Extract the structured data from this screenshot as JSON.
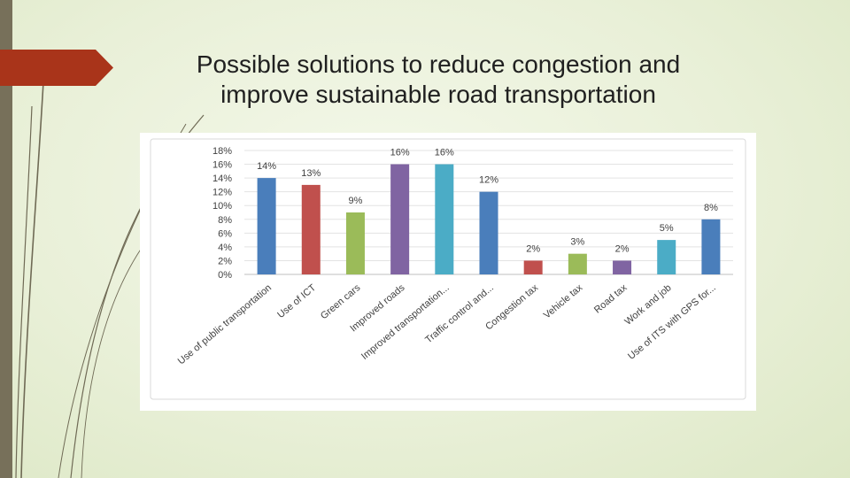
{
  "slide": {
    "title_line1": "Possible solutions to reduce congestion and",
    "title_line2": "improve sustainable road transportation"
  },
  "theme": {
    "left_bar": "#77705a",
    "accent": "#a9341a",
    "line_color": "#6f6a55"
  },
  "chart_data": {
    "type": "bar",
    "title": "",
    "xlabel": "",
    "ylabel": "",
    "ylim": [
      0,
      18
    ],
    "yticks": [
      "0%",
      "2%",
      "4%",
      "6%",
      "8%",
      "10%",
      "12%",
      "14%",
      "16%",
      "18%"
    ],
    "grid": true,
    "categories": [
      "Use of public transportation",
      "Use of ICT",
      "Green cars",
      "Improved roads",
      "Improved transportation...",
      "Traffic control and...",
      "Congestion tax",
      "Vehicle tax",
      "Road tax",
      "Work and job",
      "Use of ITS with GPS for..."
    ],
    "values": [
      14,
      13,
      9,
      16,
      16,
      12,
      2,
      3,
      2,
      5,
      8
    ],
    "data_labels": [
      "14%",
      "13%",
      "9%",
      "16%",
      "16%",
      "12%",
      "2%",
      "3%",
      "2%",
      "5%",
      "8%"
    ],
    "colors": [
      "#4a7ebb",
      "#c0504d",
      "#9bbb59",
      "#8064a2",
      "#4bacc6",
      "#4a7ebb",
      "#c0504d",
      "#9bbb59",
      "#8064a2",
      "#4bacc6",
      "#4a7ebb"
    ]
  }
}
